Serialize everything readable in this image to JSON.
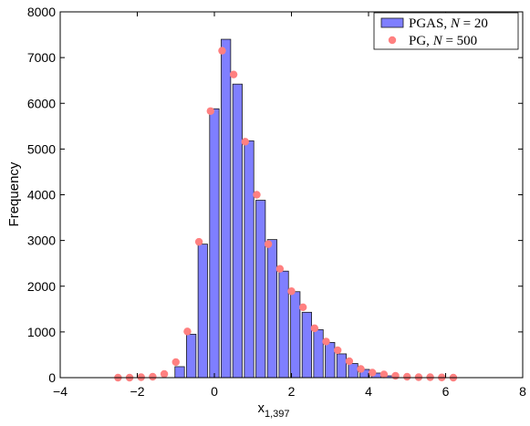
{
  "chart_data": {
    "type": "bar",
    "title": "",
    "xlabel": "x",
    "xlabel_subscript": "1,397",
    "ylabel": "Frequency",
    "xlim": [
      -4,
      8
    ],
    "ylim": [
      0,
      8000
    ],
    "xticks": [
      -4,
      -2,
      0,
      2,
      4,
      6,
      8
    ],
    "yticks": [
      0,
      1000,
      2000,
      3000,
      4000,
      5000,
      6000,
      7000,
      8000
    ],
    "grid": false,
    "legend_position": "top-right",
    "series": [
      {
        "name": "PGAS, N = 20",
        "kind": "bar",
        "label_prefix": "PGAS, ",
        "label_var": "N",
        "label_value": " = 20",
        "color": "#7f7fff",
        "edge_color": "#1a1a1a",
        "bin_width": 0.3,
        "x": [
          -0.9,
          -0.6,
          -0.3,
          0.0,
          0.3,
          0.6,
          0.9,
          1.2,
          1.5,
          1.8,
          2.1,
          2.4,
          2.7,
          3.0,
          3.3,
          3.6,
          3.9,
          4.2,
          4.5
        ],
        "y": [
          240,
          950,
          2920,
          5880,
          7400,
          6420,
          5180,
          3880,
          3020,
          2330,
          1880,
          1430,
          1050,
          770,
          520,
          310,
          180,
          100,
          40
        ]
      },
      {
        "name": "PG, N = 500",
        "kind": "scatter",
        "label_prefix": "PG, ",
        "label_var": "N",
        "label_value": " = 500",
        "color": "#ff8080",
        "x": [
          -2.5,
          -2.2,
          -1.9,
          -1.6,
          -1.3,
          -1.0,
          -0.7,
          -0.4,
          -0.1,
          0.2,
          0.5,
          0.8,
          1.1,
          1.4,
          1.7,
          2.0,
          2.3,
          2.6,
          2.9,
          3.2,
          3.5,
          3.8,
          4.1,
          4.4,
          4.7,
          5.0,
          5.3,
          5.6,
          5.9,
          6.2
        ],
        "y": [
          0,
          0,
          10,
          20,
          80,
          340,
          1010,
          2970,
          5830,
          7150,
          6630,
          5160,
          4000,
          2920,
          2380,
          1890,
          1540,
          1080,
          790,
          600,
          360,
          190,
          110,
          70,
          40,
          20,
          10,
          10,
          5,
          0
        ]
      }
    ]
  }
}
